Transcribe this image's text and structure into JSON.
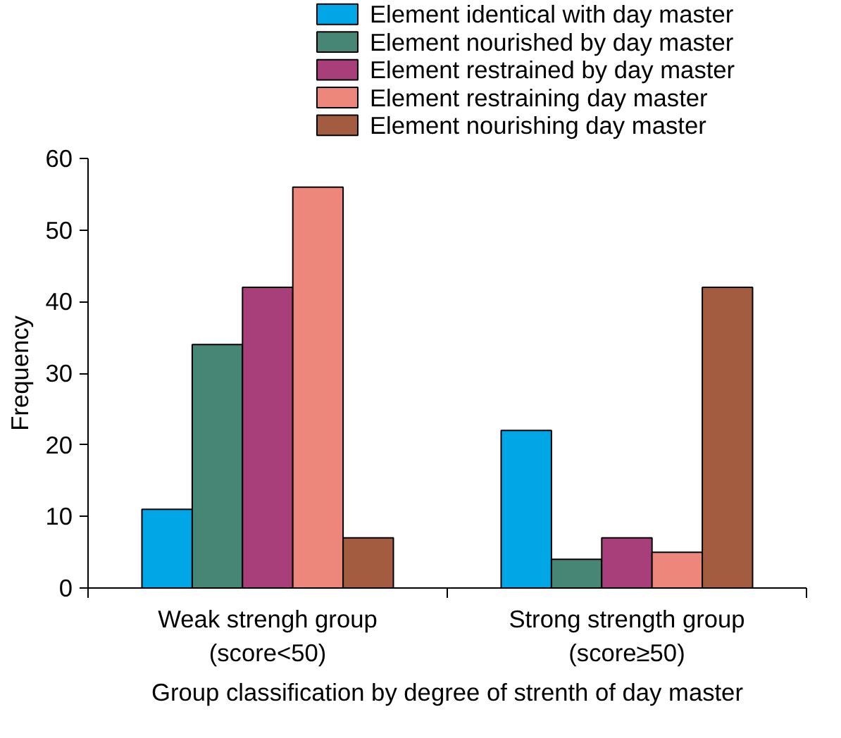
{
  "chart_data": {
    "type": "bar",
    "xlabel": "Group classification by degree of strenth of day master",
    "ylabel": "Frequency",
    "categories": [
      "Weak strengh group\n(score<50)",
      "Strong strength group\n(score≥50)"
    ],
    "series": [
      {
        "name": "Element identical with day master",
        "color": "#00a6e6",
        "values": [
          11,
          22
        ]
      },
      {
        "name": "Element nourished by day master",
        "color": "#478574",
        "values": [
          34,
          4
        ]
      },
      {
        "name": "Element restrained by day master",
        "color": "#a83f7a",
        "values": [
          42,
          7
        ]
      },
      {
        "name": "Element restraining day master",
        "color": "#ed877c",
        "values": [
          56,
          5
        ]
      },
      {
        "name": "Element nourishing day master",
        "color": "#a35c40",
        "values": [
          7,
          42
        ]
      }
    ],
    "ylim": [
      0,
      60
    ],
    "yticks": [
      0,
      10,
      20,
      30,
      40,
      50,
      60
    ],
    "grid": false,
    "legend": "top right"
  }
}
